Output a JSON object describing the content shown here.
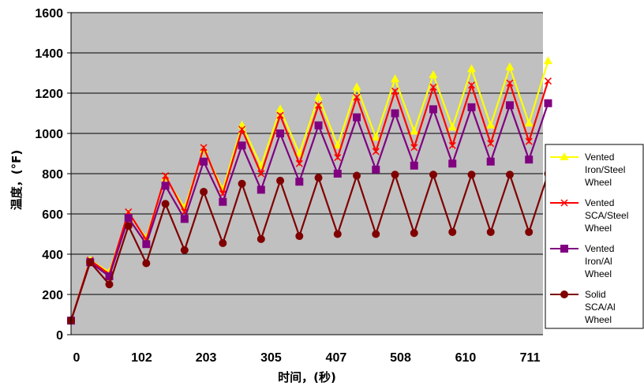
{
  "chart_data": {
    "type": "line",
    "title": "",
    "xlabel": "时间，(秒)",
    "ylabel": "温度，(°F)",
    "xlim": [
      0,
      740
    ],
    "ylim": [
      0,
      1600
    ],
    "yticks": [
      0,
      200,
      400,
      600,
      800,
      1000,
      1200,
      1400,
      1600
    ],
    "xticks": [
      0,
      102,
      203,
      305,
      407,
      508,
      610,
      711
    ],
    "grid": true,
    "legend_position": "right",
    "x": [
      0,
      30,
      60,
      90,
      118,
      148,
      178,
      208,
      238,
      268,
      298,
      328,
      358,
      388,
      418,
      448,
      478,
      508,
      538,
      568,
      598,
      628,
      658,
      688,
      718,
      748
    ],
    "series": [
      {
        "name": "Vented Iron/Steel Wheel",
        "color": "#ffff00",
        "marker": "triangle",
        "values": [
          70,
          370,
          310,
          600,
          480,
          780,
          630,
          920,
          720,
          1040,
          840,
          1120,
          900,
          1180,
          940,
          1230,
          980,
          1270,
          1010,
          1290,
          1030,
          1320,
          1040,
          1330,
          1050,
          1360
        ]
      },
      {
        "name": "Vented SCA/Steel Wheel",
        "color": "#ff0000",
        "marker": "x",
        "values": [
          70,
          370,
          300,
          610,
          470,
          790,
          610,
          930,
          700,
          1020,
          800,
          1090,
          850,
          1140,
          880,
          1180,
          910,
          1210,
          930,
          1230,
          940,
          1240,
          950,
          1250,
          960,
          1260
        ]
      },
      {
        "name": "Vented Iron/Al Wheel",
        "color": "#800080",
        "marker": "square",
        "values": [
          70,
          360,
          290,
          580,
          450,
          740,
          575,
          860,
          660,
          940,
          720,
          1000,
          760,
          1040,
          800,
          1080,
          820,
          1100,
          840,
          1120,
          850,
          1130,
          860,
          1140,
          870,
          1150
        ]
      },
      {
        "name": "Solid SCA/Al Wheel",
        "color": "#800000",
        "marker": "circle",
        "values": [
          70,
          360,
          250,
          540,
          355,
          650,
          420,
          710,
          455,
          750,
          475,
          765,
          490,
          780,
          500,
          790,
          500,
          795,
          505,
          795,
          510,
          795,
          510,
          795,
          510,
          800
        ]
      }
    ]
  }
}
